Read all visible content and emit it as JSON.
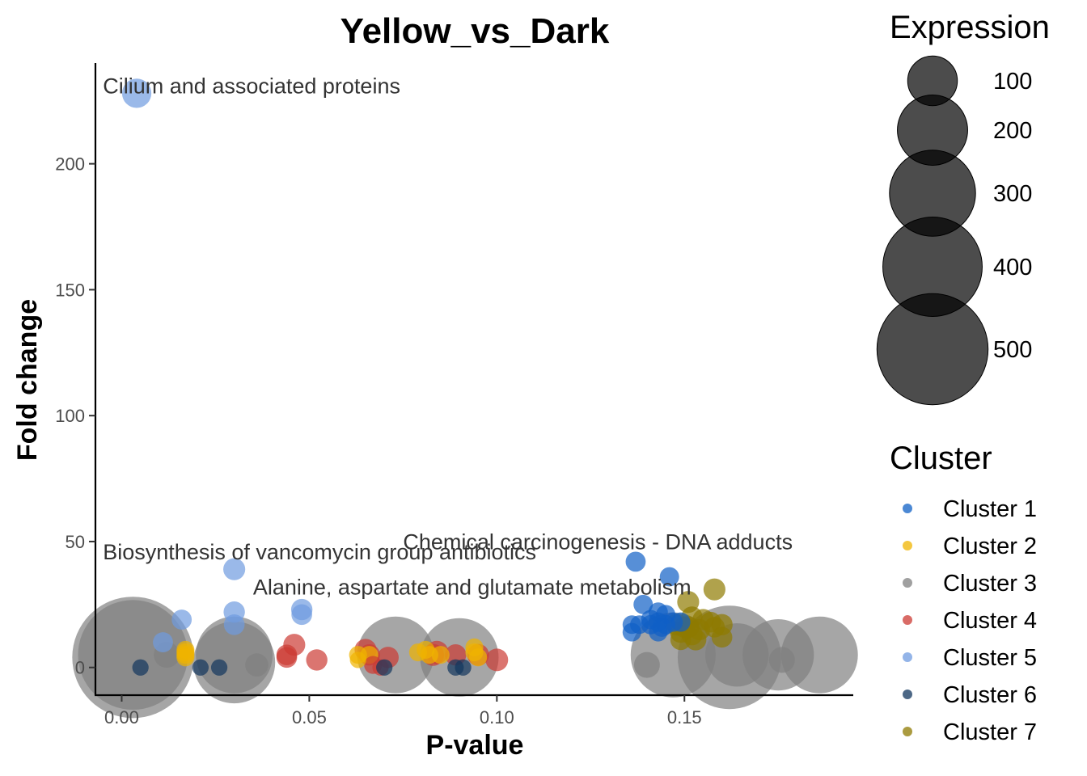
{
  "chart_data": {
    "type": "scatter",
    "title": "Yellow_vs_Dark",
    "xlabel": "P-value",
    "ylabel": "Fold change",
    "xlim": [
      -0.007,
      0.195
    ],
    "ylim": [
      -11,
      240
    ],
    "x_ticks": [
      0.0,
      0.05,
      0.1,
      0.15
    ],
    "x_tick_labels": [
      "0.00",
      "0.05",
      "0.10",
      "0.15"
    ],
    "y_ticks": [
      0,
      50,
      100,
      150,
      200
    ],
    "y_tick_labels": [
      "0",
      "50",
      "100",
      "150",
      "200"
    ],
    "grid": false,
    "size_legend": {
      "title": "Expression",
      "values": [
        100,
        200,
        300,
        400,
        500
      ],
      "labels": [
        "100",
        "200",
        "300",
        "400",
        "500"
      ]
    },
    "color_legend": {
      "title": "Cluster",
      "placement": "right"
    },
    "annotations": [
      {
        "text": "Cilium and associated proteins",
        "x": -0.005,
        "y": 228
      },
      {
        "text": "Biosynthesis of vancomycin group antibiotics",
        "x": -0.005,
        "y": 43
      },
      {
        "text": "Chemical carcinogenesis - DNA adducts",
        "x": 0.075,
        "y": 47
      },
      {
        "text": "Alanine, aspartate and glutamate metabolism",
        "x": 0.035,
        "y": 29
      }
    ],
    "series": [
      {
        "name": "Cluster 1",
        "color": "#0f60c6",
        "points": [
          [
            0.137,
            42,
            15
          ],
          [
            0.146,
            36,
            14
          ],
          [
            0.139,
            25,
            14
          ],
          [
            0.143,
            22,
            14
          ],
          [
            0.145,
            21,
            14
          ],
          [
            0.141,
            19,
            14
          ],
          [
            0.143,
            18,
            14
          ],
          [
            0.145,
            17,
            14
          ],
          [
            0.147,
            18,
            14
          ],
          [
            0.149,
            18,
            14
          ],
          [
            0.141,
            17,
            14
          ],
          [
            0.144,
            16,
            14
          ],
          [
            0.136,
            17,
            13
          ],
          [
            0.138,
            17,
            13
          ],
          [
            0.136,
            14,
            13
          ],
          [
            0.143,
            14,
            13
          ]
        ]
      },
      {
        "name": "Cluster 2",
        "color": "#f0b400",
        "points": [
          [
            0.017,
            7,
            12
          ],
          [
            0.017,
            6,
            12
          ],
          [
            0.017,
            5,
            12
          ],
          [
            0.017,
            4,
            12
          ],
          [
            0.063,
            5,
            12
          ],
          [
            0.063,
            3,
            10
          ],
          [
            0.066,
            5,
            12
          ],
          [
            0.079,
            6,
            12
          ],
          [
            0.081,
            7,
            12
          ],
          [
            0.082,
            5,
            12
          ],
          [
            0.094,
            8,
            12
          ],
          [
            0.094,
            6,
            12
          ],
          [
            0.095,
            4,
            12
          ],
          [
            0.085,
            5,
            12
          ]
        ]
      },
      {
        "name": "Cluster 3",
        "color": "#808080",
        "points": [
          [
            0.003,
            4,
            550
          ],
          [
            0.003,
            5,
            450
          ],
          [
            0.012,
            5,
            25
          ],
          [
            0.03,
            5,
            220
          ],
          [
            0.03,
            2,
            250
          ],
          [
            0.036,
            1,
            20
          ],
          [
            0.073,
            5,
            220
          ],
          [
            0.09,
            4,
            230
          ],
          [
            0.14,
            1,
            25
          ],
          [
            0.147,
            5,
            270
          ],
          [
            0.162,
            4,
            400
          ],
          [
            0.164,
            5,
            150
          ],
          [
            0.175,
            5,
            190
          ],
          [
            0.176,
            3,
            25
          ],
          [
            0.186,
            5,
            220
          ]
        ]
      },
      {
        "name": "Cluster 4",
        "color": "#cc3a33",
        "points": [
          [
            0.046,
            9,
            18
          ],
          [
            0.044,
            5,
            16
          ],
          [
            0.044,
            4,
            16
          ],
          [
            0.052,
            3,
            17
          ],
          [
            0.065,
            7,
            18
          ],
          [
            0.066,
            5,
            17
          ],
          [
            0.067,
            1,
            12
          ],
          [
            0.071,
            4,
            17
          ],
          [
            0.084,
            6,
            20
          ],
          [
            0.083,
            5,
            18
          ],
          [
            0.089,
            5,
            17
          ],
          [
            0.095,
            5,
            18
          ],
          [
            0.1,
            3,
            19
          ],
          [
            0.069,
            0,
            10
          ]
        ]
      },
      {
        "name": "Cluster 5",
        "color": "#6f9be0",
        "points": [
          [
            0.004,
            228,
            32
          ],
          [
            0.03,
            39,
            18
          ],
          [
            0.03,
            22,
            17
          ],
          [
            0.03,
            17,
            16
          ],
          [
            0.048,
            23,
            17
          ],
          [
            0.048,
            21,
            16
          ],
          [
            0.016,
            19,
            15
          ],
          [
            0.011,
            10,
            15
          ]
        ]
      },
      {
        "name": "Cluster 6",
        "color": "#12365e",
        "points": [
          [
            0.005,
            0,
            10
          ],
          [
            0.021,
            0,
            10
          ],
          [
            0.026,
            0,
            10
          ],
          [
            0.07,
            0,
            10
          ],
          [
            0.089,
            0,
            10
          ],
          [
            0.091,
            0,
            10
          ]
        ]
      },
      {
        "name": "Cluster 7",
        "color": "#8f7a00",
        "points": [
          [
            0.158,
            31,
            18
          ],
          [
            0.151,
            26,
            18
          ],
          [
            0.152,
            20,
            17
          ],
          [
            0.155,
            19,
            17
          ],
          [
            0.157,
            18,
            16
          ],
          [
            0.148,
            17,
            18
          ],
          [
            0.151,
            16,
            18
          ],
          [
            0.154,
            15,
            17
          ],
          [
            0.158,
            16,
            16
          ],
          [
            0.16,
            17,
            17
          ],
          [
            0.149,
            14,
            17
          ],
          [
            0.152,
            13,
            17
          ],
          [
            0.153,
            11,
            17
          ],
          [
            0.149,
            11,
            16
          ],
          [
            0.16,
            12,
            16
          ],
          [
            0.15,
            16,
            17
          ]
        ]
      }
    ]
  }
}
